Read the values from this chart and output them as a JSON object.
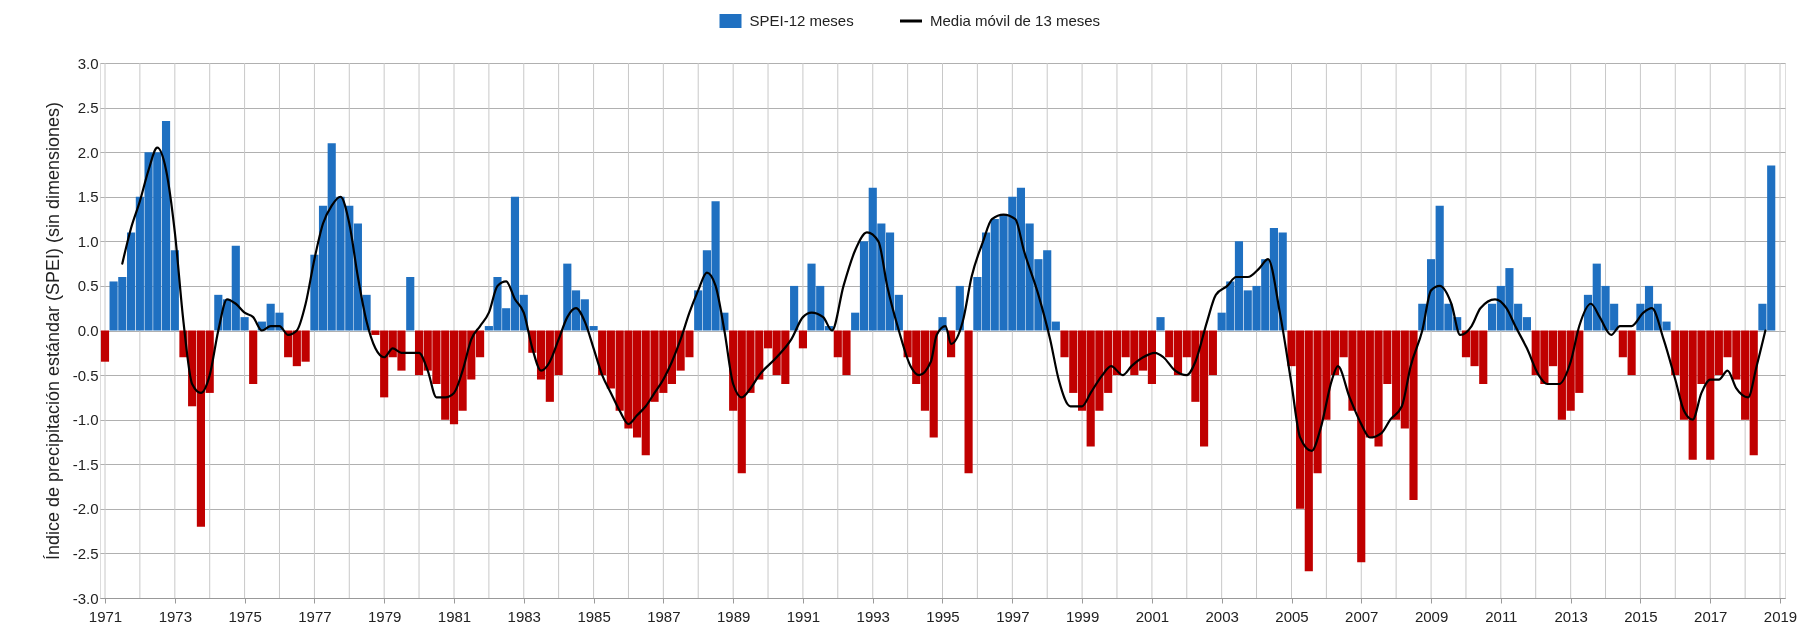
{
  "chart_data": {
    "type": "bar",
    "ylabel": "Índice de precipitación estándar (SPEI) (sin dimensiones)",
    "legend": "top",
    "grid": true,
    "xlim": [
      "1971-01",
      "2019-01"
    ],
    "ylim": [
      -3.0,
      3.0
    ],
    "yticks": [
      {
        "value": 3,
        "label": "3.0"
      },
      {
        "value": 2.5,
        "label": "2.5"
      },
      {
        "value": 2,
        "label": "2.0"
      },
      {
        "value": 1.5,
        "label": "1.5"
      },
      {
        "value": 1,
        "label": "1.0"
      },
      {
        "value": 0.5,
        "label": "0.5"
      },
      {
        "value": 0,
        "label": "0.0"
      },
      {
        "value": -0.5,
        "label": "-0.5"
      },
      {
        "value": -1,
        "label": "-1.0"
      },
      {
        "value": -1.5,
        "label": "-1.5"
      },
      {
        "value": -2,
        "label": "-2.0"
      },
      {
        "value": -2.5,
        "label": "-2.5"
      },
      {
        "value": -3,
        "label": "-3.0"
      }
    ],
    "xticks": [
      "1971",
      {
        "value": "1972",
        "label": null
      },
      "1973",
      {
        "value": "1974",
        "label": null
      },
      "1975",
      {
        "value": "1976",
        "label": null
      },
      "1977",
      {
        "value": "1978",
        "label": null
      },
      "1979",
      {
        "value": "1980",
        "label": null
      },
      "1981",
      {
        "value": "1982",
        "label": null
      },
      "1983",
      {
        "value": "1984",
        "label": null
      },
      "1985",
      {
        "value": "1986",
        "label": null
      },
      "1987",
      {
        "value": "1988",
        "label": null
      },
      "1989",
      {
        "value": "1990",
        "label": null
      },
      "1991",
      {
        "value": "1992",
        "label": null
      },
      "1993",
      {
        "value": "1994",
        "label": null
      },
      "1995",
      {
        "value": "1996",
        "label": null
      },
      "1997",
      {
        "value": "1998",
        "label": null
      },
      "1999",
      {
        "value": "2000",
        "label": null
      },
      "2001",
      {
        "value": "2002",
        "label": null
      },
      "2003",
      {
        "value": "2004",
        "label": null
      },
      "2005",
      {
        "value": "2006",
        "label": null
      },
      "2007",
      {
        "value": "2008",
        "label": null
      },
      "2009",
      {
        "value": "2010",
        "label": null
      },
      "2011",
      {
        "value": "2012",
        "label": null
      },
      "2013",
      {
        "value": "2014",
        "label": null
      },
      "2015",
      {
        "value": "2016",
        "label": null
      },
      "2017",
      {
        "value": "2018",
        "label": null
      },
      "2019"
    ],
    "series": [
      {
        "name": "SPEI-12 meses",
        "color": "#1f70c1",
        "x": [
          "1971-04",
          "1971-07",
          "1971-10",
          "1972-01",
          "1972-04",
          "1972-07",
          "1972-10",
          "1973-01",
          "1974-04",
          "1974-07",
          "1974-10",
          "1975-01",
          "1975-07",
          "1975-10",
          "1976-01",
          "1977-01",
          "1977-04",
          "1977-07",
          "1977-10",
          "1978-01",
          "1978-04",
          "1978-07",
          "1979-10",
          "1982-01",
          "1982-04",
          "1982-07",
          "1982-10",
          "1983-01",
          "1984-04",
          "1984-07",
          "1984-10",
          "1985-01",
          "1988-01",
          "1988-04",
          "1988-07",
          "1988-10",
          "1990-10",
          "1991-04",
          "1991-07",
          "1991-10",
          "1992-07",
          "1992-10",
          "1993-01",
          "1993-04",
          "1993-07",
          "1993-10",
          "1995-01",
          "1995-07",
          "1996-01",
          "1996-04",
          "1996-07",
          "1996-10",
          "1997-01",
          "1997-04",
          "1997-07",
          "1997-10",
          "1998-01",
          "1998-04",
          "2001-04",
          "2003-01",
          "2003-04",
          "2003-07",
          "2003-10",
          "2004-01",
          "2004-04",
          "2004-07",
          "2004-10",
          "2008-10",
          "2009-01",
          "2009-04",
          "2009-07",
          "2009-10",
          "2010-10",
          "2011-01",
          "2011-04",
          "2011-07",
          "2011-10",
          "2013-07",
          "2013-10",
          "2014-01",
          "2014-04",
          "2015-01",
          "2015-04",
          "2015-07",
          "2015-10",
          "2018-07",
          "2018-10"
        ],
        "values": [
          0.55,
          0.6,
          1.1,
          1.5,
          2.0,
          2.0,
          2.35,
          0.9,
          0.4,
          0.35,
          0.95,
          0.15,
          0.1,
          0.3,
          0.2,
          0.85,
          1.4,
          2.1,
          1.5,
          1.4,
          1.2,
          0.4,
          0.6,
          0.05,
          0.6,
          0.25,
          1.5,
          0.4,
          0.75,
          0.45,
          0.35,
          0.05,
          0.45,
          0.9,
          1.45,
          0.2,
          0.5,
          0.75,
          0.5,
          0.05,
          0.2,
          1.0,
          1.6,
          1.2,
          1.1,
          0.4,
          0.15,
          0.5,
          0.6,
          1.1,
          1.25,
          1.3,
          1.5,
          1.6,
          1.2,
          0.8,
          0.9,
          0.1,
          0.15,
          0.2,
          0.55,
          1.0,
          0.45,
          0.5,
          0.8,
          1.15,
          1.1,
          0.3,
          0.8,
          1.4,
          0.3,
          0.15,
          0.3,
          0.5,
          0.7,
          0.3,
          0.15,
          0.4,
          0.75,
          0.5,
          0.3,
          0.3,
          0.5,
          0.3,
          0.1,
          0.3,
          1.85
        ]
      },
      {
        "color": "#c00000",
        "x": [
          "1971-01",
          "1973-04",
          "1973-07",
          "1973-10",
          "1974-01",
          "1975-04",
          "1976-04",
          "1976-07",
          "1976-10",
          "1978-10",
          "1979-01",
          "1979-04",
          "1979-07",
          "1980-01",
          "1980-04",
          "1980-07",
          "1980-10",
          "1981-01",
          "1981-04",
          "1981-07",
          "1981-10",
          "1983-04",
          "1983-07",
          "1983-10",
          "1984-01",
          "1985-04",
          "1985-07",
          "1985-10",
          "1986-01",
          "1986-04",
          "1986-07",
          "1986-10",
          "1987-01",
          "1987-04",
          "1987-07",
          "1987-10",
          "1989-01",
          "1989-04",
          "1989-07",
          "1989-10",
          "1990-01",
          "1990-04",
          "1990-07",
          "1991-01",
          "1992-01",
          "1992-04",
          "1994-01",
          "1994-04",
          "1994-07",
          "1994-10",
          "1995-04",
          "1995-10",
          "1998-07",
          "1998-10",
          "1999-01",
          "1999-04",
          "1999-07",
          "1999-10",
          "2000-01",
          "2000-04",
          "2000-07",
          "2000-10",
          "2001-01",
          "2001-07",
          "2001-10",
          "2002-01",
          "2002-04",
          "2002-07",
          "2002-10",
          "2005-01",
          "2005-04",
          "2005-07",
          "2005-10",
          "2006-01",
          "2006-04",
          "2006-07",
          "2006-10",
          "2007-01",
          "2007-04",
          "2007-07",
          "2007-10",
          "2008-01",
          "2008-04",
          "2008-07",
          "2010-01",
          "2010-04",
          "2010-07",
          "2012-01",
          "2012-04",
          "2012-07",
          "2012-10",
          "2013-01",
          "2013-04",
          "2014-07",
          "2014-10",
          "2016-01",
          "2016-04",
          "2016-07",
          "2016-10",
          "2017-01",
          "2017-04",
          "2017-07",
          "2017-10",
          "2018-01",
          "2018-04"
        ],
        "values": [
          -0.35,
          -0.3,
          -0.85,
          -2.2,
          -0.7,
          -0.6,
          -0.3,
          -0.4,
          -0.35,
          -0.05,
          -0.75,
          -0.3,
          -0.45,
          -0.5,
          -0.45,
          -0.6,
          -1.0,
          -1.05,
          -0.9,
          -0.55,
          -0.3,
          -0.25,
          -0.55,
          -0.8,
          -0.5,
          -0.5,
          -0.65,
          -0.9,
          -1.1,
          -1.2,
          -1.4,
          -0.8,
          -0.7,
          -0.6,
          -0.45,
          -0.3,
          -0.9,
          -1.6,
          -0.7,
          -0.55,
          -0.2,
          -0.5,
          -0.6,
          -0.2,
          -0.3,
          -0.5,
          -0.3,
          -0.6,
          -0.9,
          -1.2,
          -0.3,
          -1.6,
          -0.3,
          -0.7,
          -0.9,
          -1.3,
          -0.9,
          -0.7,
          -0.5,
          -0.3,
          -0.5,
          -0.45,
          -0.6,
          -0.3,
          -0.5,
          -0.3,
          -0.8,
          -1.3,
          -0.5,
          -0.4,
          -2.0,
          -2.7,
          -1.6,
          -1.0,
          -0.5,
          -0.3,
          -0.9,
          -2.6,
          -1.2,
          -1.3,
          -0.6,
          -1.0,
          -1.1,
          -1.9,
          -0.3,
          -0.4,
          -0.6,
          -0.5,
          -0.6,
          -0.4,
          -1.0,
          -0.9,
          -0.7,
          -0.3,
          -0.5,
          -0.5,
          -1.0,
          -1.45,
          -0.6,
          -1.45,
          -0.5,
          -0.3,
          -0.55,
          -1.0,
          -1.4
        ]
      },
      {
        "name": "Media móvil de 13 meses",
        "type": "line",
        "color": "#000000",
        "line_style": "solid",
        "x": [
          "1971-07",
          "1971-10",
          "1972-01",
          "1972-04",
          "1972-07",
          "1972-10",
          "1973-01",
          "1973-04",
          "1973-07",
          "1973-10",
          "1974-01",
          "1974-04",
          "1974-07",
          "1974-10",
          "1975-01",
          "1975-04",
          "1975-07",
          "1975-10",
          "1976-01",
          "1976-04",
          "1976-07",
          "1976-10",
          "1977-01",
          "1977-04",
          "1977-07",
          "1977-10",
          "1978-01",
          "1978-04",
          "1978-07",
          "1978-10",
          "1979-01",
          "1979-04",
          "1979-07",
          "1979-10",
          "1980-01",
          "1980-04",
          "1980-07",
          "1980-10",
          "1981-01",
          "1981-04",
          "1981-07",
          "1981-10",
          "1982-01",
          "1982-04",
          "1982-07",
          "1982-10",
          "1983-01",
          "1983-04",
          "1983-07",
          "1983-10",
          "1984-01",
          "1984-04",
          "1984-07",
          "1984-10",
          "1985-01",
          "1985-04",
          "1985-07",
          "1985-10",
          "1986-01",
          "1986-04",
          "1986-07",
          "1986-10",
          "1987-01",
          "1987-04",
          "1987-07",
          "1987-10",
          "1988-01",
          "1988-04",
          "1988-07",
          "1988-10",
          "1989-01",
          "1989-04",
          "1989-07",
          "1989-10",
          "1990-04",
          "1990-09",
          "1991-01",
          "1991-04",
          "1991-08",
          "1991-11",
          "1992-03",
          "1992-07",
          "1992-11",
          "1993-03",
          "1993-06",
          "1993-10",
          "1994-02",
          "1994-05",
          "1994-09",
          "1994-11",
          "1995-02",
          "1995-04",
          "1995-08",
          "1995-11",
          "1996-03",
          "1996-06",
          "1996-10",
          "1997-02",
          "1997-05",
          "1997-10",
          "1998-02",
          "1998-05",
          "1998-09",
          "1999-01",
          "1999-04",
          "1999-08",
          "1999-11",
          "2000-03",
          "2000-06",
          "2000-10",
          "2001-02",
          "2001-05",
          "2001-09",
          "2002-01",
          "2002-04",
          "2002-08",
          "2002-11",
          "2003-03",
          "2003-06",
          "2003-10",
          "2004-02",
          "2004-05",
          "2004-09",
          "2005-01",
          "2005-04",
          "2005-08",
          "2005-11",
          "2006-03",
          "2006-05",
          "2006-09",
          "2007-01",
          "2007-04",
          "2007-08",
          "2007-11",
          "2008-03",
          "2008-06",
          "2008-10",
          "2009-01",
          "2009-04",
          "2009-08",
          "2009-11",
          "2010-03",
          "2010-06",
          "2010-11",
          "2011-03",
          "2011-06",
          "2011-10",
          "2012-02",
          "2012-05",
          "2012-09",
          "2013-01",
          "2013-04",
          "2013-08",
          "2013-11",
          "2014-03",
          "2014-06",
          "2014-10",
          "2015-02",
          "2015-05",
          "2015-09",
          "2016-01",
          "2016-04",
          "2016-07",
          "2016-10",
          "2017-01",
          "2017-04",
          "2017-07",
          "2017-10",
          "2018-02",
          "2018-05",
          "2018-08"
        ],
        "values": [
          0.75,
          1.15,
          1.45,
          1.8,
          2.05,
          1.8,
          1.1,
          0.1,
          -0.6,
          -0.7,
          -0.5,
          0.0,
          0.35,
          0.3,
          0.2,
          0.15,
          0.0,
          0.05,
          0.05,
          -0.05,
          0.0,
          0.3,
          0.8,
          1.2,
          1.4,
          1.5,
          1.2,
          0.6,
          0.1,
          -0.2,
          -0.3,
          -0.2,
          -0.25,
          -0.25,
          -0.25,
          -0.45,
          -0.75,
          -0.75,
          -0.7,
          -0.45,
          -0.1,
          0.05,
          0.2,
          0.5,
          0.55,
          0.35,
          0.2,
          -0.2,
          -0.45,
          -0.35,
          -0.1,
          0.15,
          0.25,
          0.1,
          -0.2,
          -0.5,
          -0.7,
          -0.9,
          -1.05,
          -0.95,
          -0.85,
          -0.7,
          -0.55,
          -0.35,
          -0.1,
          0.2,
          0.45,
          0.65,
          0.5,
          0.0,
          -0.6,
          -0.75,
          -0.65,
          -0.5,
          -0.3,
          -0.1,
          0.15,
          0.2,
          0.15,
          0.0,
          0.5,
          0.9,
          1.1,
          1.0,
          0.5,
          0.0,
          -0.4,
          -0.5,
          -0.35,
          -0.05,
          0.05,
          -0.15,
          0.1,
          0.6,
          1.0,
          1.25,
          1.3,
          1.25,
          0.9,
          0.4,
          -0.1,
          -0.55,
          -0.85,
          -0.85,
          -0.7,
          -0.5,
          -0.4,
          -0.5,
          -0.4,
          -0.3,
          -0.25,
          -0.3,
          -0.45,
          -0.5,
          -0.35,
          0.1,
          0.4,
          0.5,
          0.6,
          0.6,
          0.7,
          0.8,
          0.2,
          -0.6,
          -1.2,
          -1.35,
          -1.1,
          -0.55,
          -0.4,
          -0.75,
          -1.05,
          -1.2,
          -1.15,
          -1.0,
          -0.85,
          -0.4,
          0.0,
          0.45,
          0.5,
          0.3,
          -0.05,
          0.05,
          0.25,
          0.35,
          0.25,
          0.05,
          -0.2,
          -0.5,
          -0.6,
          -0.6,
          -0.35,
          0.05,
          0.3,
          0.15,
          -0.05,
          0.05,
          0.05,
          0.2,
          0.25,
          -0.1,
          -0.55,
          -0.9,
          -1.0,
          -0.7,
          -0.55,
          -0.55,
          -0.45,
          -0.65,
          -0.75,
          -0.4,
          0.0
        ]
      }
    ]
  }
}
